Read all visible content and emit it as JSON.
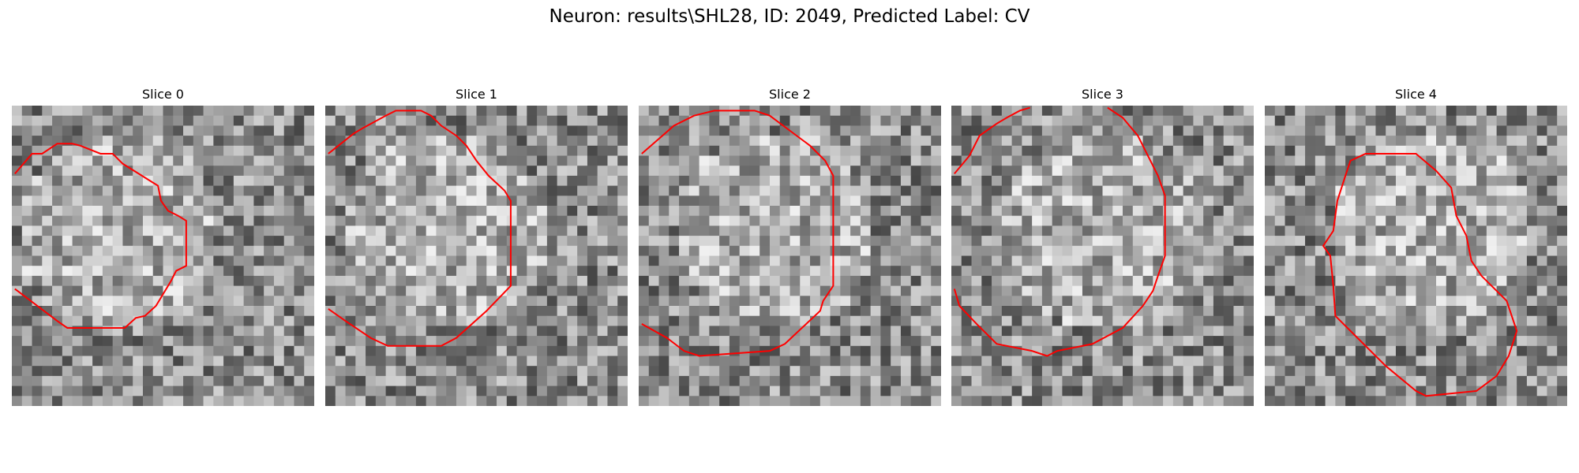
{
  "title": "Neuron: results\\SHL28, ID: 2049, Predicted Label: CV",
  "panels": [
    {
      "title": "Slice 0"
    },
    {
      "title": "Slice 1"
    },
    {
      "title": "Slice 2"
    },
    {
      "title": "Slice 3"
    },
    {
      "title": "Slice 4"
    }
  ]
}
